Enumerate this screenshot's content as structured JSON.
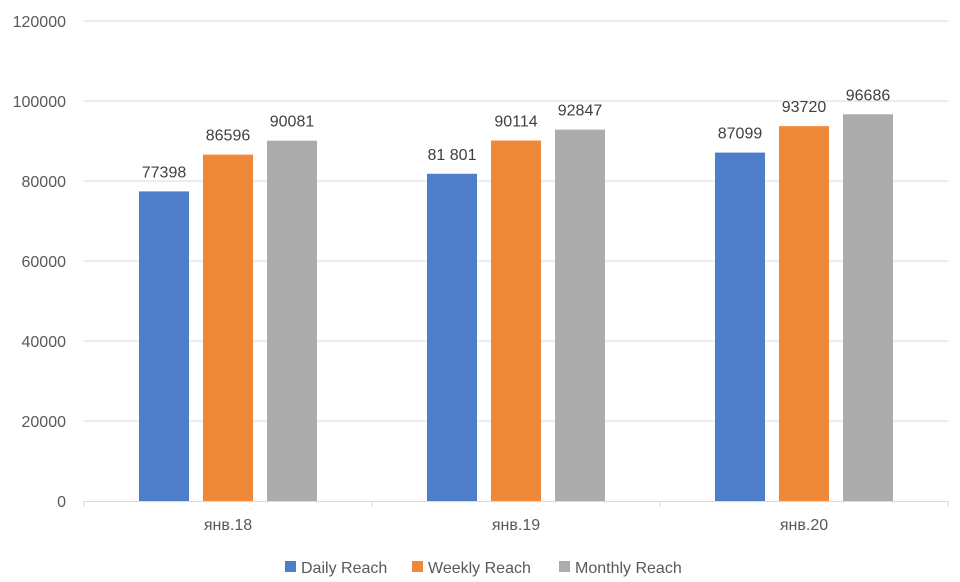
{
  "chart_data": {
    "type": "bar",
    "title": "",
    "xlabel": "",
    "ylabel": "",
    "categories": [
      "янв.18",
      "янв.19",
      "янв.20"
    ],
    "series": [
      {
        "name": "Daily Reach",
        "color": "#4e7dc9",
        "values": [
          77398,
          81801,
          87099
        ],
        "labels": [
          "77398",
          "81 801",
          "87099"
        ]
      },
      {
        "name": "Weekly Reach",
        "color": "#f0883a",
        "values": [
          86596,
          90114,
          93720
        ],
        "labels": [
          "86596",
          "90114",
          "93720"
        ]
      },
      {
        "name": "Monthly Reach",
        "color": "#acacac",
        "values": [
          90081,
          92847,
          96686
        ],
        "labels": [
          "90081",
          "92847",
          "96686"
        ]
      }
    ],
    "ylim": [
      0,
      120000
    ],
    "yticks": [
      "0",
      "20000",
      "40000",
      "60000",
      "80000",
      "100000",
      "120000"
    ],
    "grid": true,
    "legend": "bottom"
  }
}
